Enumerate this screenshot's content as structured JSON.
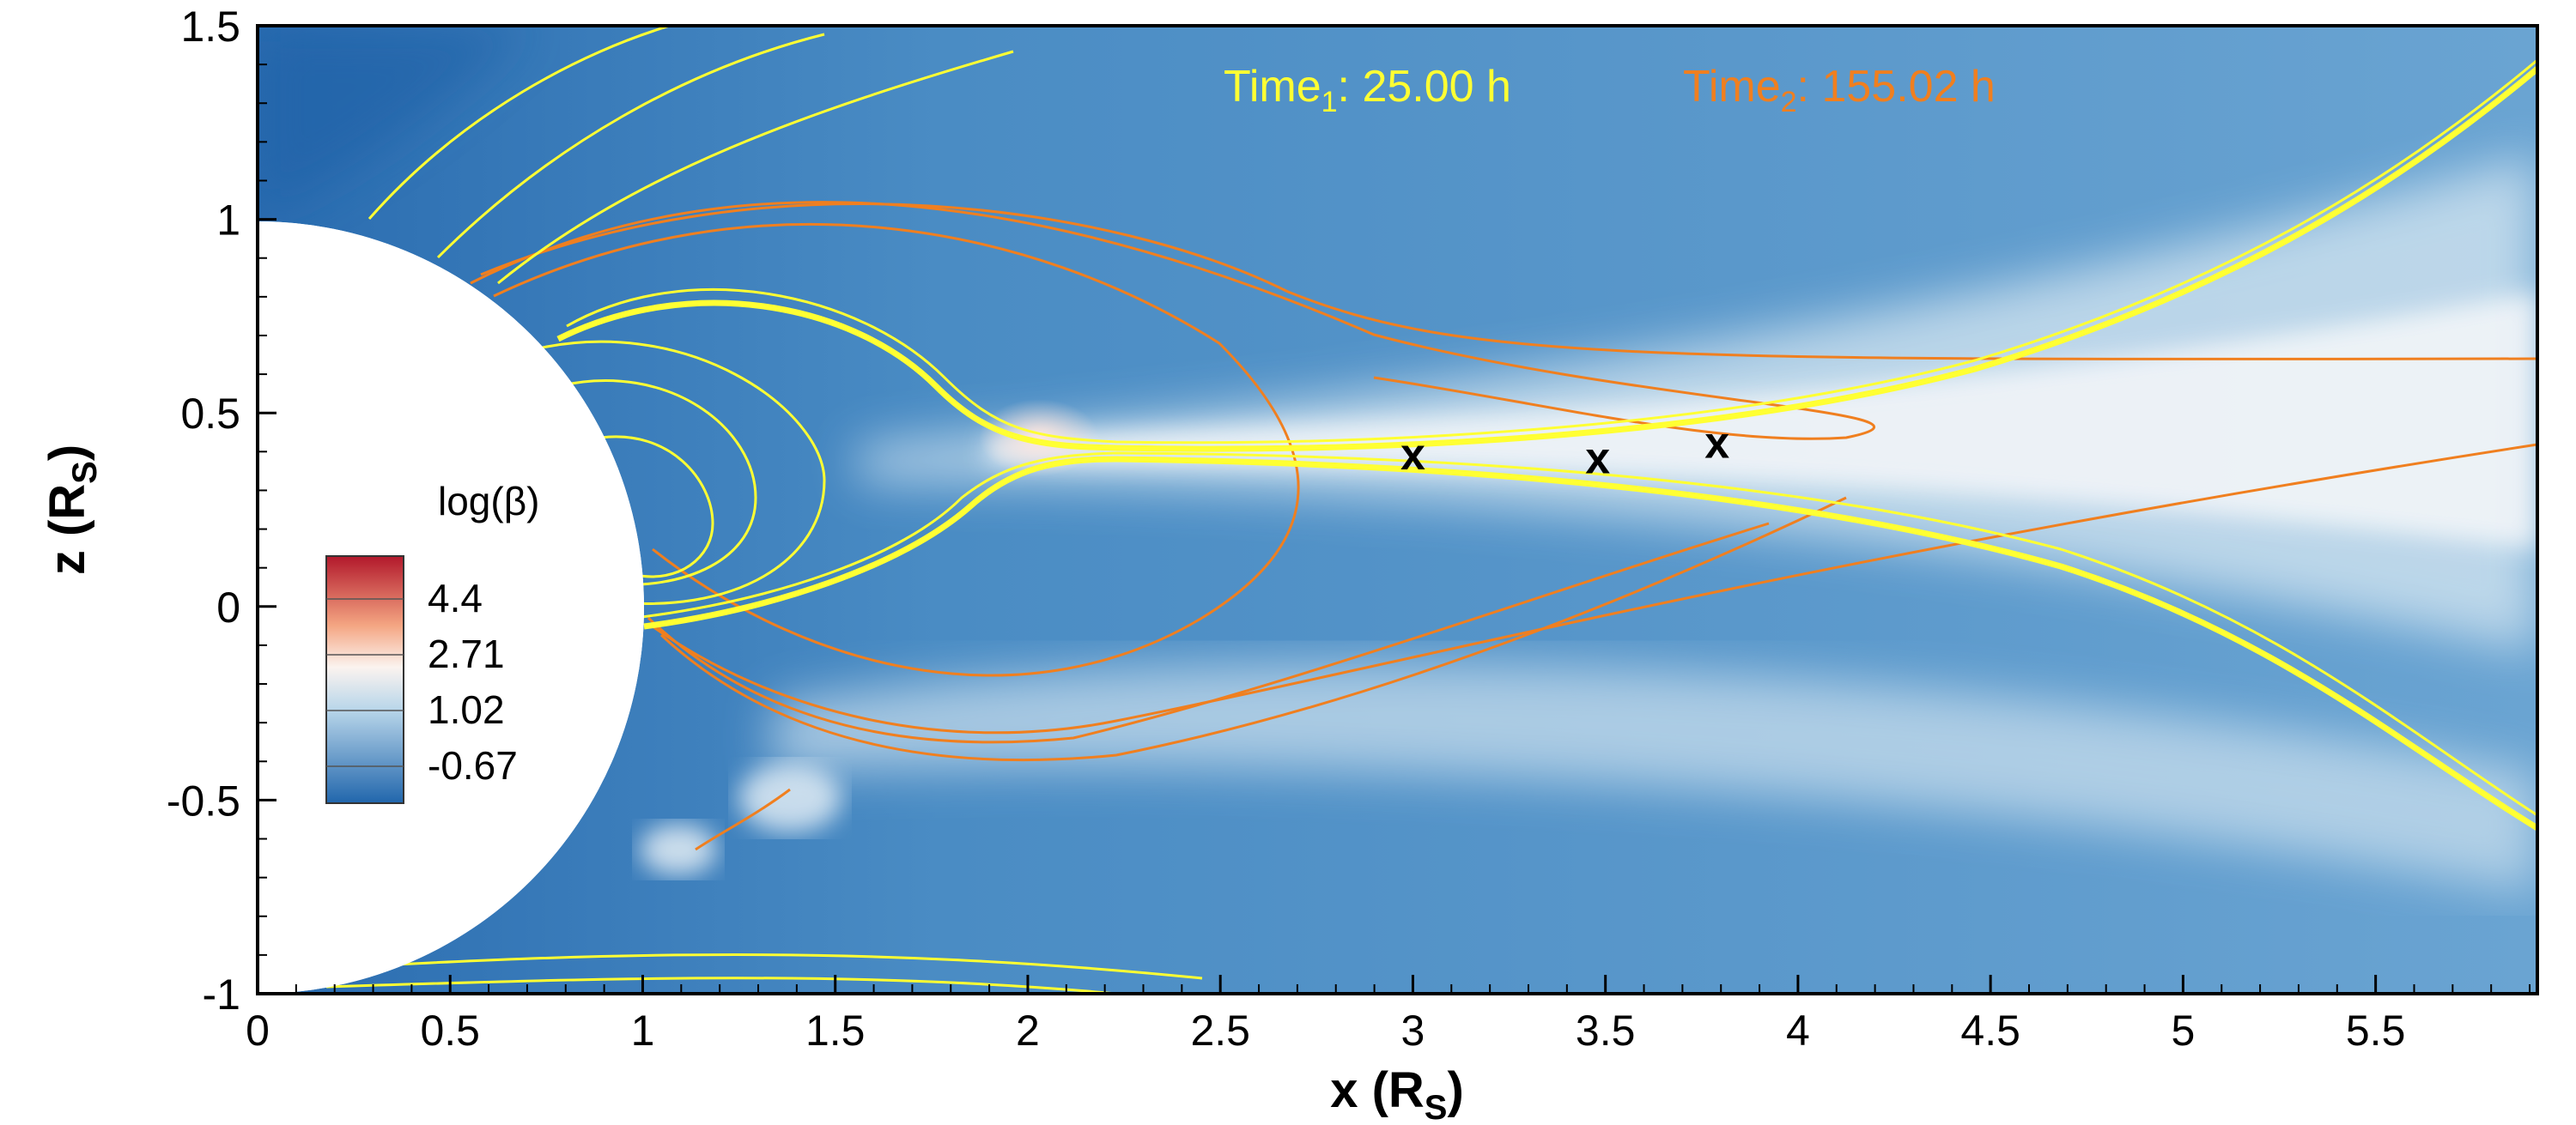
{
  "chart_data": {
    "type": "heatmap",
    "title": "",
    "xlabel": "x (R",
    "xlabel_sub": "S",
    "xlabel_close": ")",
    "ylabel": "z (R",
    "ylabel_sub": "S",
    "ylabel_close": ")",
    "xlim": [
      0,
      5.92
    ],
    "ylim": [
      -1,
      1.5
    ],
    "x_ticks": [
      "0",
      "0.5",
      "1",
      "1.5",
      "2",
      "2.5",
      "3",
      "3.5",
      "4",
      "4.5",
      "5",
      "5.5"
    ],
    "y_ticks": [
      "-1",
      "-0.5",
      "0",
      "0.5",
      "1",
      "1.5"
    ],
    "grid": false,
    "legend_position": "left",
    "colorbar": {
      "title": "log(β)",
      "labels": [
        "4.4",
        "2.71",
        "1.02",
        "-0.67"
      ],
      "colors": [
        "#b2182b",
        "#f4a582",
        "#f7f7f7",
        "#9ecae1",
        "#2166ac"
      ]
    },
    "annotations": {
      "time1_prefix": "Time",
      "time1_sub": "1",
      "time1_value": ": 25.00 h",
      "time2_prefix": "Time",
      "time2_sub": "2",
      "time2_value": ": 155.02 h",
      "markers": [
        {
          "label": "x",
          "x": 3.0,
          "z": 0.39
        },
        {
          "label": "x",
          "x": 3.48,
          "z": 0.38
        },
        {
          "label": "x",
          "x": 3.79,
          "z": 0.42
        }
      ]
    },
    "series": [
      {
        "color": "#ffff33",
        "time": "25.00 h"
      },
      {
        "color": "#f07f1f",
        "time": "155.02 h"
      }
    ]
  }
}
